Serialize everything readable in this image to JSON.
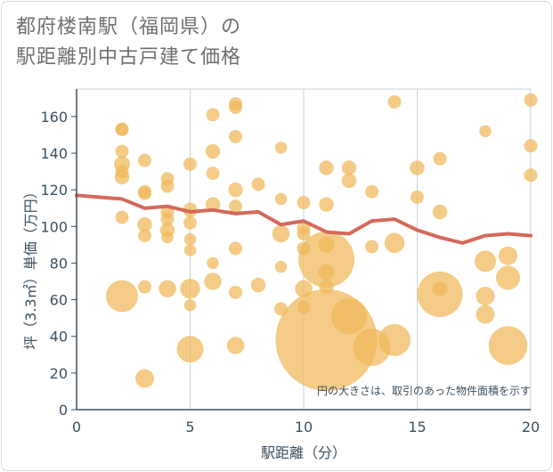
{
  "title_lines": [
    "都府楼南駅（福岡県）の",
    "駅距離別中古戸建て価格"
  ],
  "chart_data": {
    "type": "scatter",
    "title": "都府楼南駅（福岡県）の駅距離別中古戸建て価格",
    "xlabel": "駅距離（分）",
    "ylabel": "坪（3.3㎡）単価（万円）",
    "xlim": [
      0,
      20
    ],
    "ylim": [
      0,
      175
    ],
    "xticks": [
      0,
      5,
      10,
      15,
      20
    ],
    "yticks": [
      0,
      20,
      40,
      60,
      80,
      100,
      120,
      140,
      160
    ],
    "grid": true,
    "note": "円の大きさは、取引のあった物件面積を示す",
    "colors": {
      "bubble": "#f0b95a",
      "line": "#d4695a",
      "grid": "#c9d3dc",
      "text": "#3d4f5f"
    },
    "bubbles": [
      {
        "x": 2,
        "y": 153,
        "s": 1
      },
      {
        "x": 2,
        "y": 153,
        "s": 1
      },
      {
        "x": 2,
        "y": 141,
        "s": 1
      },
      {
        "x": 2,
        "y": 134,
        "s": 1.2
      },
      {
        "x": 2,
        "y": 130,
        "s": 1
      },
      {
        "x": 2,
        "y": 127,
        "s": 1.1
      },
      {
        "x": 2,
        "y": 105,
        "s": 1
      },
      {
        "x": 2,
        "y": 62,
        "s": 2.4
      },
      {
        "x": 3,
        "y": 136,
        "s": 1
      },
      {
        "x": 3,
        "y": 119,
        "s": 1
      },
      {
        "x": 3,
        "y": 118,
        "s": 1
      },
      {
        "x": 3,
        "y": 101,
        "s": 1.1
      },
      {
        "x": 3,
        "y": 95,
        "s": 1
      },
      {
        "x": 3,
        "y": 67,
        "s": 1
      },
      {
        "x": 3,
        "y": 17,
        "s": 1.4
      },
      {
        "x": 4,
        "y": 126,
        "s": 1
      },
      {
        "x": 4,
        "y": 122,
        "s": 1
      },
      {
        "x": 4,
        "y": 108,
        "s": 1
      },
      {
        "x": 4,
        "y": 104,
        "s": 1
      },
      {
        "x": 4,
        "y": 98,
        "s": 1.1
      },
      {
        "x": 4,
        "y": 94,
        "s": 0.9
      },
      {
        "x": 4,
        "y": 66,
        "s": 1.3
      },
      {
        "x": 5,
        "y": 134,
        "s": 1
      },
      {
        "x": 5,
        "y": 109,
        "s": 1.1
      },
      {
        "x": 5,
        "y": 102,
        "s": 1
      },
      {
        "x": 5,
        "y": 93,
        "s": 0.9
      },
      {
        "x": 5,
        "y": 87,
        "s": 0.9
      },
      {
        "x": 5,
        "y": 66,
        "s": 1.5
      },
      {
        "x": 5,
        "y": 57,
        "s": 0.9
      },
      {
        "x": 5,
        "y": 33,
        "s": 2
      },
      {
        "x": 6,
        "y": 161,
        "s": 1
      },
      {
        "x": 6,
        "y": 141,
        "s": 1.1
      },
      {
        "x": 6,
        "y": 129,
        "s": 1
      },
      {
        "x": 6,
        "y": 112,
        "s": 1.1
      },
      {
        "x": 6,
        "y": 80,
        "s": 0.9
      },
      {
        "x": 6,
        "y": 70,
        "s": 1.3
      },
      {
        "x": 7,
        "y": 167,
        "s": 1
      },
      {
        "x": 7,
        "y": 165,
        "s": 1
      },
      {
        "x": 7,
        "y": 149,
        "s": 1
      },
      {
        "x": 7,
        "y": 120,
        "s": 1.1
      },
      {
        "x": 7,
        "y": 111,
        "s": 1
      },
      {
        "x": 7,
        "y": 88,
        "s": 1
      },
      {
        "x": 7,
        "y": 64,
        "s": 1
      },
      {
        "x": 7,
        "y": 35,
        "s": 1.3
      },
      {
        "x": 8,
        "y": 123,
        "s": 1
      },
      {
        "x": 8,
        "y": 68,
        "s": 1.1
      },
      {
        "x": 9,
        "y": 143,
        "s": 0.9
      },
      {
        "x": 9,
        "y": 115,
        "s": 0.9
      },
      {
        "x": 9,
        "y": 96,
        "s": 1.3
      },
      {
        "x": 9,
        "y": 78,
        "s": 0.9
      },
      {
        "x": 9,
        "y": 55,
        "s": 1
      },
      {
        "x": 10,
        "y": 113,
        "s": 1
      },
      {
        "x": 10,
        "y": 99,
        "s": 1
      },
      {
        "x": 10,
        "y": 96,
        "s": 1
      },
      {
        "x": 10,
        "y": 88,
        "s": 1
      },
      {
        "x": 10,
        "y": 66,
        "s": 1.3
      },
      {
        "x": 10,
        "y": 56,
        "s": 1
      },
      {
        "x": 11,
        "y": 132,
        "s": 1.1
      },
      {
        "x": 11,
        "y": 112,
        "s": 1.1
      },
      {
        "x": 11,
        "y": 90,
        "s": 1.2
      },
      {
        "x": 11,
        "y": 82,
        "s": 4.2
      },
      {
        "x": 11,
        "y": 75,
        "s": 1.2
      },
      {
        "x": 11,
        "y": 67,
        "s": 1.1
      },
      {
        "x": 11,
        "y": 38,
        "s": 7.6
      },
      {
        "x": 12,
        "y": 132,
        "s": 1.1
      },
      {
        "x": 12,
        "y": 125,
        "s": 1.1
      },
      {
        "x": 12,
        "y": 51,
        "s": 2.7
      },
      {
        "x": 13,
        "y": 119,
        "s": 1
      },
      {
        "x": 13,
        "y": 89,
        "s": 1
      },
      {
        "x": 13,
        "y": 34,
        "s": 2.8
      },
      {
        "x": 14,
        "y": 168,
        "s": 1
      },
      {
        "x": 14,
        "y": 91,
        "s": 1.5
      },
      {
        "x": 14,
        "y": 38,
        "s": 2.4
      },
      {
        "x": 15,
        "y": 132,
        "s": 1.1
      },
      {
        "x": 15,
        "y": 116,
        "s": 1
      },
      {
        "x": 16,
        "y": 137,
        "s": 1
      },
      {
        "x": 16,
        "y": 108,
        "s": 1.1
      },
      {
        "x": 16,
        "y": 66,
        "s": 1.1
      },
      {
        "x": 16,
        "y": 63,
        "s": 3.4
      },
      {
        "x": 18,
        "y": 152,
        "s": 0.9
      },
      {
        "x": 18,
        "y": 81,
        "s": 1.6
      },
      {
        "x": 18,
        "y": 62,
        "s": 1.4
      },
      {
        "x": 18,
        "y": 52,
        "s": 1.4
      },
      {
        "x": 19,
        "y": 84,
        "s": 1.4
      },
      {
        "x": 19,
        "y": 72,
        "s": 1.8
      },
      {
        "x": 19,
        "y": 35,
        "s": 2.9
      },
      {
        "x": 20,
        "y": 169,
        "s": 1
      },
      {
        "x": 20,
        "y": 144,
        "s": 1
      },
      {
        "x": 20,
        "y": 128,
        "s": 1
      }
    ],
    "trend": {
      "x": [
        0,
        1,
        2,
        3,
        4,
        5,
        6,
        7,
        8,
        9,
        10,
        11,
        12,
        13,
        14,
        15,
        16,
        17,
        18,
        19,
        20
      ],
      "y": [
        117,
        116,
        115,
        110,
        111,
        108,
        109,
        107,
        108,
        101,
        103,
        97,
        96,
        103,
        104,
        98,
        94,
        91,
        95,
        96,
        95
      ]
    }
  }
}
